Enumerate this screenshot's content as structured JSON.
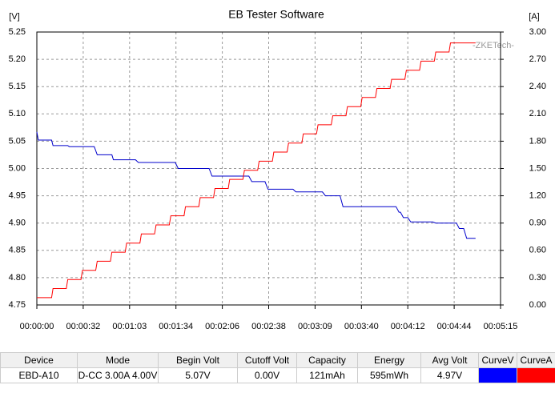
{
  "chart_data": {
    "type": "line",
    "title": "EB Tester Software",
    "y_unit": "[V]",
    "y2_unit": "[A]",
    "annotation": "-ZKETech-",
    "grid": true,
    "xlim": [
      0,
      315
    ],
    "xticks": [
      {
        "value": 0,
        "label": "00:00:00"
      },
      {
        "value": 31.5,
        "label": "00:00:32"
      },
      {
        "value": 63,
        "label": "00:01:03"
      },
      {
        "value": 94.5,
        "label": "00:01:34"
      },
      {
        "value": 126,
        "label": "00:02:06"
      },
      {
        "value": 157.5,
        "label": "00:02:38"
      },
      {
        "value": 189,
        "label": "00:03:09"
      },
      {
        "value": 220.5,
        "label": "00:03:40"
      },
      {
        "value": 252,
        "label": "00:04:12"
      },
      {
        "value": 283.5,
        "label": "00:04:44"
      },
      {
        "value": 315,
        "label": "00:05:15"
      }
    ],
    "ylim": [
      4.75,
      5.25
    ],
    "yticks": [
      4.75,
      {
        "value": 4.8,
        "label": "4.80"
      },
      4.85,
      {
        "value": 4.9,
        "label": "4.90"
      },
      4.95,
      {
        "value": 5,
        "label": "5.00"
      },
      5.05,
      {
        "value": 5.1,
        "label": "5.10"
      },
      5.15,
      {
        "value": 5.2,
        "label": "5.20"
      },
      5.25
    ],
    "y2lim": [
      0,
      3
    ],
    "y2ticks": [
      {
        "value": 0,
        "label": "0.00"
      },
      {
        "value": 0.3,
        "label": "0.30"
      },
      {
        "value": 0.6,
        "label": "0.60"
      },
      {
        "value": 0.9,
        "label": "0.90"
      },
      {
        "value": 1.2,
        "label": "1.20"
      },
      {
        "value": 1.5,
        "label": "1.50"
      },
      {
        "value": 1.8,
        "label": "1.80"
      },
      {
        "value": 2.1,
        "label": "2.10"
      },
      {
        "value": 2.4,
        "label": "2.40"
      },
      {
        "value": 2.7,
        "label": "2.70"
      },
      {
        "value": 3,
        "label": "3.00"
      }
    ],
    "series": [
      {
        "color": "#0000cc",
        "axis": "y",
        "x": [
          0,
          1,
          10,
          11,
          21,
          22,
          39,
          41,
          51,
          52,
          67,
          69,
          94,
          96,
          117,
          119,
          144,
          146,
          155,
          157,
          174,
          176,
          194,
          196,
          206,
          208,
          244,
          246,
          247,
          249,
          252,
          254,
          269,
          271,
          285,
          287,
          290,
          292,
          298
        ],
        "values": [
          5.067,
          5.052,
          5.052,
          5.042,
          5.042,
          5.04,
          5.04,
          5.025,
          5.025,
          5.016,
          5.016,
          5.011,
          5.011,
          5.0,
          5.0,
          4.986,
          4.986,
          4.976,
          4.976,
          4.962,
          4.962,
          4.957,
          4.957,
          4.95,
          4.95,
          4.93,
          4.93,
          4.92,
          4.92,
          4.91,
          4.91,
          4.902,
          4.902,
          4.9,
          4.9,
          4.89,
          4.89,
          4.872,
          4.872
        ]
      },
      {
        "color": "#ff0000",
        "axis": "y2",
        "x": [
          0,
          10,
          11,
          20,
          21,
          30,
          31,
          40,
          41,
          50,
          51,
          60,
          61,
          70,
          71,
          80,
          81,
          90,
          91,
          100,
          101,
          110,
          111,
          120,
          121,
          130,
          131,
          140,
          141,
          150,
          151,
          160,
          161,
          170,
          171,
          180,
          181,
          190,
          191,
          200,
          201,
          210,
          211,
          220,
          221,
          230,
          231,
          240,
          241,
          250,
          251,
          260,
          261,
          270,
          271,
          280,
          281,
          298
        ],
        "values": [
          0.08,
          0.08,
          0.18,
          0.18,
          0.28,
          0.28,
          0.38,
          0.38,
          0.48,
          0.48,
          0.58,
          0.58,
          0.68,
          0.68,
          0.78,
          0.78,
          0.88,
          0.88,
          0.98,
          0.98,
          1.08,
          1.08,
          1.18,
          1.18,
          1.28,
          1.28,
          1.38,
          1.38,
          1.48,
          1.48,
          1.58,
          1.58,
          1.68,
          1.68,
          1.78,
          1.78,
          1.88,
          1.88,
          1.98,
          1.98,
          2.08,
          2.08,
          2.18,
          2.18,
          2.28,
          2.28,
          2.38,
          2.38,
          2.48,
          2.48,
          2.58,
          2.58,
          2.68,
          2.68,
          2.78,
          2.78,
          2.88,
          2.88
        ]
      }
    ]
  },
  "table": {
    "header": [
      "Device",
      "Mode",
      "Begin Volt",
      "Cutoff Volt",
      "Capacity",
      "Energy",
      "Avg Volt",
      "CurveV",
      "CurveA"
    ],
    "row": [
      "EBD-A10",
      "D-CC  3.00A  4.00V",
      "5.07V",
      "0.00V",
      "121mAh",
      "595mWh",
      "4.97V"
    ],
    "swatches": [
      "#0000ff",
      "#ff0000"
    ]
  }
}
